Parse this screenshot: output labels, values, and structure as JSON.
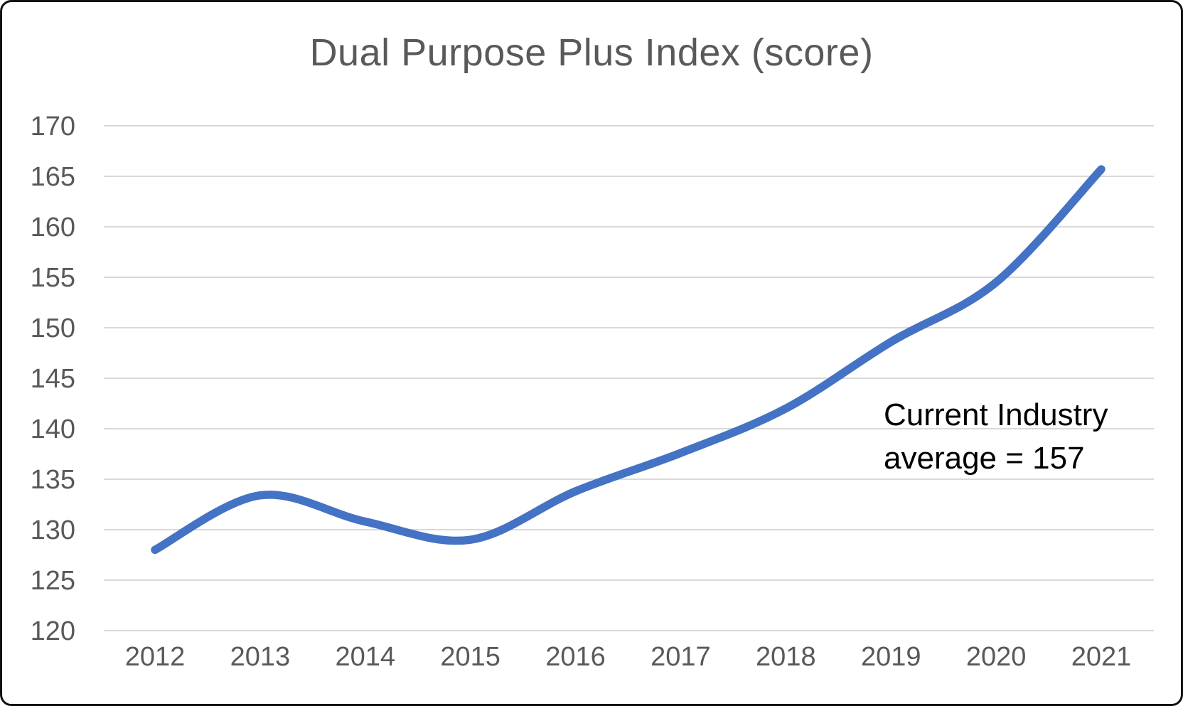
{
  "chart_data": {
    "type": "line",
    "title": "Dual Purpose Plus Index (score)",
    "categories": [
      "2012",
      "2013",
      "2014",
      "2015",
      "2016",
      "2017",
      "2018",
      "2019",
      "2020",
      "2021"
    ],
    "series": [
      {
        "name": "Dual Purpose Plus Index",
        "values": [
          128,
          133.4,
          130.8,
          129,
          133.8,
          137.6,
          142,
          148.6,
          154.5,
          165.7
        ]
      }
    ],
    "xlabel": "",
    "ylabel": "",
    "ylim": [
      120,
      170
    ],
    "ytick_step": 5,
    "yticks": [
      120,
      125,
      130,
      135,
      140,
      145,
      150,
      155,
      160,
      165,
      170
    ],
    "grid": "horizontal",
    "legend": "none",
    "smooth": true,
    "annotation": {
      "lines": [
        "Current Industry",
        "average = 157"
      ],
      "value": 157
    },
    "colors": {
      "line": "#4472C4",
      "gridline": "#D9D9D9",
      "axis_text": "#595959",
      "title_text": "#595959",
      "annotation_text": "#000000",
      "background": "#FFFFFF",
      "border": "#111111"
    }
  }
}
